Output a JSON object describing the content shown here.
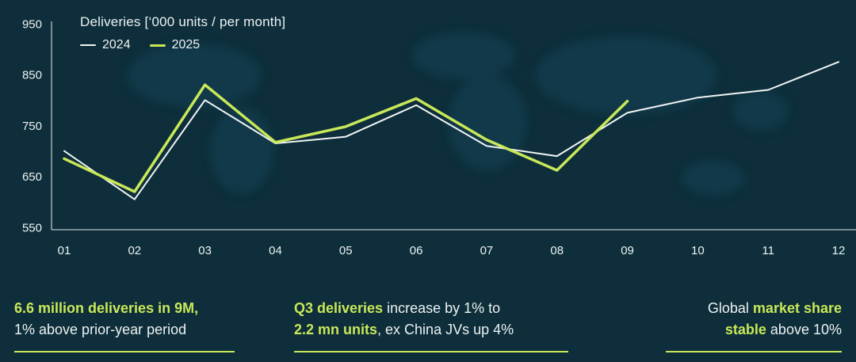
{
  "chart_data": {
    "type": "line",
    "title": "Deliveries [‘000 units / per month]",
    "x": [
      "01",
      "02",
      "03",
      "04",
      "05",
      "06",
      "07",
      "08",
      "09",
      "10",
      "11",
      "12"
    ],
    "xlabel": "",
    "ylabel": "",
    "ylim": [
      550,
      950
    ],
    "yticks": [
      550,
      650,
      750,
      850,
      950
    ],
    "grid": false,
    "legend_position": "top-left",
    "series": [
      {
        "name": "2024",
        "color": "#f0f4f5",
        "stroke_width": 2,
        "values": [
          700,
          605,
          800,
          715,
          728,
          790,
          710,
          690,
          775,
          805,
          820,
          875
        ]
      },
      {
        "name": "2025",
        "color": "#c9e858",
        "stroke_width": 3.5,
        "values": [
          685,
          620,
          830,
          717,
          748,
          803,
          722,
          662,
          798
        ]
      }
    ]
  },
  "colors": {
    "background": "#0d2e3a",
    "accent_green": "#c9e858",
    "text_light": "#eef2f3",
    "axis": "#c9d4d9",
    "map": "#17455a"
  },
  "footer": {
    "block1": {
      "line1_hl": "6.6 million deliveries in 9M,",
      "line2": "1% above prior-year period"
    },
    "block2": {
      "line1_hl": "Q3 deliveries",
      "line1_rest": " increase by 1% to",
      "line2_hl": "2.2 mn units",
      "line2_rest": ", ex China JVs up 4%"
    },
    "block3": {
      "line1_plain": "Global ",
      "line1_hl": "market share",
      "line2_hl": "stable",
      "line2_rest": " above 10%"
    }
  }
}
